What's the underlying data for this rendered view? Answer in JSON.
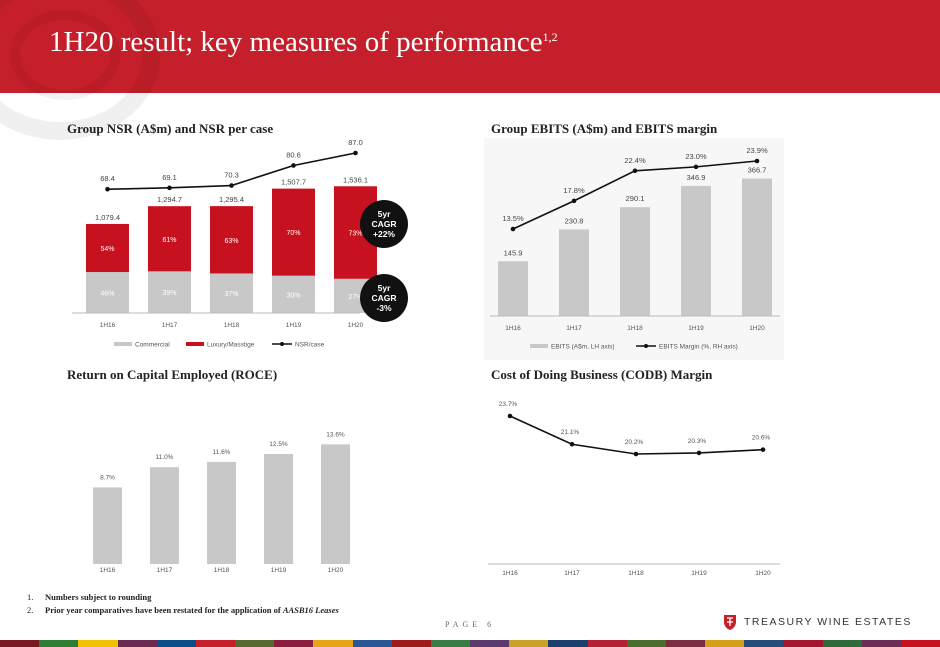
{
  "header": {
    "title": "1H20 result; key measures of performance",
    "superscript": "1,2"
  },
  "charts": {
    "nsr": {
      "title": "Group NSR (A$m) and NSR per case"
    },
    "ebits": {
      "title": "Group EBITS (A$m) and EBITS margin"
    },
    "roce": {
      "title": "Return on Capital Employed (ROCE)"
    },
    "codb": {
      "title": "Cost of Doing Business (CODB) Margin"
    }
  },
  "badges": {
    "top": {
      "line1": "5yr",
      "line2": "CAGR",
      "line3": "+22%"
    },
    "bottom": {
      "line1": "5yr",
      "line2": "CAGR",
      "line3": "-3%"
    }
  },
  "footnotes": [
    {
      "num": "1.",
      "text": "Numbers subject to rounding",
      "em": ""
    },
    {
      "num": "2.",
      "text": "Prior year comparatives have been restated for the application of ",
      "em": "AASB16 Leases"
    }
  ],
  "page_label": "PAGE 6",
  "brand": "TREASURY WINE ESTATES",
  "colors": {
    "header_red": "#c41f2b",
    "bar_red": "#c8111e",
    "bar_grey": "#c8c8c8",
    "line": "#111111"
  },
  "chart_data": [
    {
      "id": "nsr",
      "type": "bar",
      "stacked": true,
      "categories": [
        "1H16",
        "1H17",
        "1H18",
        "1H19",
        "1H20"
      ],
      "totals": [
        "1,079.4",
        "1,294.7",
        "1,295.4",
        "1,507.7",
        "1,536.1"
      ],
      "total_values": [
        1079.4,
        1294.7,
        1295.4,
        1507.7,
        1536.1
      ],
      "series": [
        {
          "name": "Commercial",
          "percent": [
            46,
            39,
            37,
            30,
            27
          ],
          "labels": [
            "46%",
            "39%",
            "37%",
            "30%",
            "27%"
          ]
        },
        {
          "name": "Luxury/Masstige",
          "percent": [
            54,
            61,
            63,
            70,
            73
          ],
          "labels": [
            "54%",
            "61%",
            "63%",
            "70%",
            "73%"
          ]
        }
      ],
      "line": {
        "name": "NSR/case",
        "values": [
          68.4,
          69.1,
          70.3,
          80.6,
          87.0
        ],
        "labels": [
          "68.4",
          "69.1",
          "70.3",
          "80.6",
          "87.0"
        ]
      },
      "legend": [
        "Commercial",
        "Luxury/Masstige",
        "NSR/case"
      ]
    },
    {
      "id": "ebits",
      "type": "bar",
      "categories": [
        "1H16",
        "1H17",
        "1H18",
        "1H19",
        "1H20"
      ],
      "series": [
        {
          "name": "EBITS (A$m, LH axis)",
          "values": [
            145.9,
            230.8,
            290.1,
            346.9,
            366.7
          ],
          "labels": [
            "145.9",
            "230.8",
            "290.1",
            "346.9",
            "366.7"
          ]
        }
      ],
      "line": {
        "name": "EBITS Margin (%, RH axis)",
        "values": [
          13.5,
          17.8,
          22.4,
          23.0,
          23.9
        ],
        "labels": [
          "13.5%",
          "17.8%",
          "22.4%",
          "23.0%",
          "23.9%"
        ]
      },
      "legend": [
        "EBITS (A$m, LH axis)",
        "EBITS Margin (%, RH axis)"
      ]
    },
    {
      "id": "roce",
      "type": "bar",
      "categories": [
        "1H16",
        "1H17",
        "1H18",
        "1H19",
        "1H20"
      ],
      "series": [
        {
          "values": [
            8.7,
            11.0,
            11.6,
            12.5,
            13.6
          ],
          "labels": [
            "8.7%",
            "11.0%",
            "11.6%",
            "12.5%",
            "13.6%"
          ]
        }
      ]
    },
    {
      "id": "codb",
      "type": "line",
      "categories": [
        "1H16",
        "1H17",
        "1H18",
        "1H19",
        "1H20"
      ],
      "series": [
        {
          "values": [
            23.7,
            21.1,
            20.2,
            20.3,
            20.6
          ],
          "labels": [
            "23.7%",
            "21.1%",
            "20.2%",
            "20.3%",
            "20.6%"
          ]
        }
      ]
    }
  ]
}
